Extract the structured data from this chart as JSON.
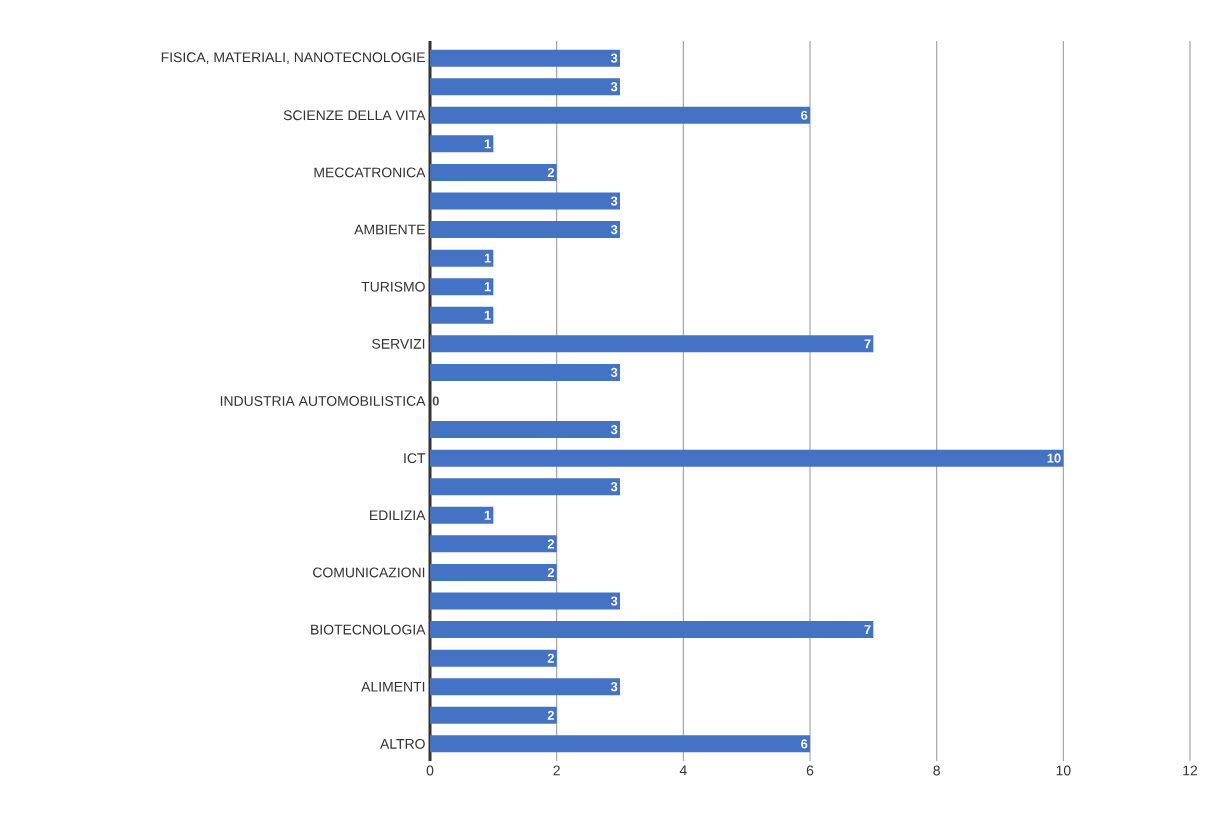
{
  "chart_data": {
    "type": "bar",
    "orientation": "horizontal",
    "categories": [
      "FISICA, MATERIALI, NANOTECNOLOGIE",
      null,
      "SCIENZE DELLA VITA",
      null,
      "MECCATRONICA",
      null,
      "AMBIENTE",
      null,
      "TURISMO",
      null,
      "SERVIZI",
      null,
      "INDUSTRIA AUTOMOBILISTICA",
      null,
      "ICT",
      null,
      "EDILIZIA",
      null,
      "COMUNICAZIONI",
      null,
      "BIOTECNOLOGIA",
      null,
      "ALIMENTI",
      null,
      "ALTRO"
    ],
    "values": [
      3,
      3,
      6,
      1,
      2,
      3,
      3,
      1,
      1,
      1,
      7,
      3,
      0,
      3,
      10,
      3,
      1,
      2,
      2,
      3,
      7,
      2,
      3,
      2,
      6
    ],
    "color": "#4472c4",
    "xlim": [
      0,
      12
    ],
    "xticks": [
      0,
      2,
      4,
      6,
      8,
      10,
      12
    ],
    "grid": "x",
    "data_labels": true
  }
}
